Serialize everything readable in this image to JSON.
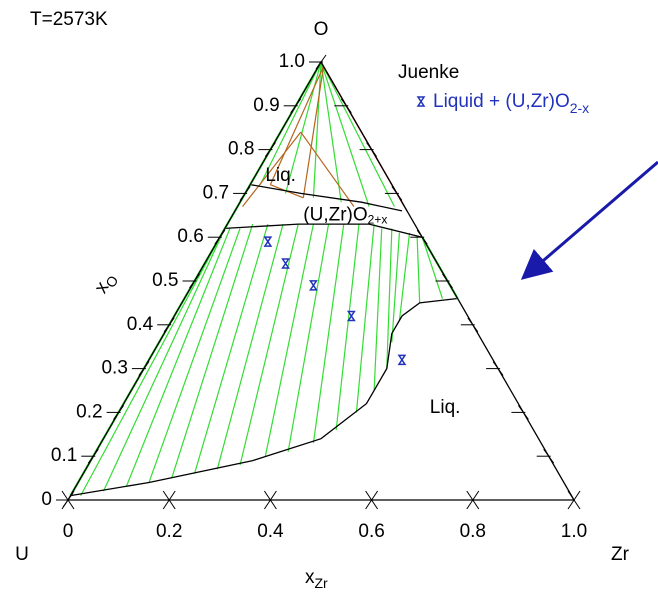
{
  "chart_data": {
    "type": "ternary",
    "title": "T=2573K",
    "corners": {
      "top": "O",
      "left": "U",
      "right": "Zr"
    },
    "x_label": "x",
    "x_label_sub": "Zr",
    "y_label": "x",
    "y_label_sub": "O",
    "yticks": [
      0,
      0.1,
      0.2,
      0.3,
      0.4,
      0.5,
      0.6,
      0.7,
      0.8,
      0.9,
      {
        "value": 1,
        "label": "1.0"
      }
    ],
    "xticks": [
      0,
      0.2,
      0.4,
      0.6,
      0.8,
      {
        "value": 1,
        "label": "1.0"
      }
    ],
    "legend_title": "Juenke",
    "series": [
      {
        "name": "Liquid + (U,Zr)O",
        "name_sub": "2-x",
        "color": "#2233bb",
        "xZr": [
          0.1,
          0.16,
          0.24,
          0.35,
          0.5
        ],
        "xO": [
          0.59,
          0.54,
          0.49,
          0.42,
          0.32
        ]
      }
    ],
    "annotations": [
      {
        "text": "Liq.",
        "at": [
          0.02,
          0.74
        ]
      },
      {
        "text": "(U,Zr)O",
        "sub": "2+x",
        "at": [
          0.14,
          0.65
        ]
      },
      {
        "text": "Liq.",
        "at": [
          0.61,
          0.21
        ]
      }
    ],
    "boundaries": [
      {
        "color": "#000000",
        "points": [
          [
            0.0,
            0.01
          ],
          [
            0.14,
            0.04
          ],
          [
            0.32,
            0.09
          ],
          [
            0.43,
            0.14
          ],
          [
            0.48,
            0.22
          ],
          [
            0.48,
            0.3
          ],
          [
            0.45,
            0.38
          ],
          [
            0.45,
            0.42
          ],
          [
            0.47,
            0.45
          ],
          [
            0.54,
            0.46
          ]
        ]
      },
      {
        "color": "#000000",
        "points": [
          [
            0.0,
            0.62
          ],
          [
            0.14,
            0.63
          ],
          [
            0.28,
            0.63
          ],
          [
            0.4,
            0.6
          ]
        ]
      },
      {
        "color": "#000000",
        "points": [
          [
            0.0,
            0.72
          ],
          [
            0.11,
            0.7
          ],
          [
            0.24,
            0.68
          ],
          [
            0.33,
            0.66
          ]
        ]
      },
      {
        "color": "#33dd33",
        "points": [
          [
            0.0,
            0.01
          ],
          [
            0.0,
            0.62
          ]
        ]
      },
      {
        "color": "#33dd33",
        "points": [
          [
            0.4,
            0.6
          ],
          [
            0.54,
            0.46
          ]
        ]
      },
      {
        "color": "#33dd33",
        "points": [
          [
            0.0,
            0.62
          ],
          [
            0.0,
            1
          ]
        ]
      },
      {
        "color": "#cc2222",
        "points": [
          [
            0.0,
            1
          ],
          [
            0.33,
            0.67
          ]
        ]
      },
      {
        "color": "#cc2222",
        "points": [
          [
            0.02,
            0.98
          ],
          [
            0.34,
            0.66
          ]
        ]
      }
    ],
    "tie_lines": [
      {
        "color": "#33dd33",
        "segments": [
          [
            [
              0.0,
              0.62
            ],
            [
              0.02,
              0.01
            ]
          ],
          [
            [
              0.0,
              0.62
            ],
            [
              0.06,
              0.02
            ]
          ],
          [
            [
              0.01,
              0.62
            ],
            [
              0.1,
              0.03
            ]
          ],
          [
            [
              0.03,
              0.62
            ],
            [
              0.14,
              0.04
            ]
          ],
          [
            [
              0.05,
              0.63
            ],
            [
              0.18,
              0.05
            ]
          ],
          [
            [
              0.08,
              0.63
            ],
            [
              0.22,
              0.06
            ]
          ],
          [
            [
              0.11,
              0.63
            ],
            [
              0.26,
              0.07
            ]
          ],
          [
            [
              0.14,
              0.63
            ],
            [
              0.3,
              0.08
            ]
          ],
          [
            [
              0.17,
              0.63
            ],
            [
              0.34,
              0.1
            ]
          ],
          [
            [
              0.2,
              0.63
            ],
            [
              0.38,
              0.11
            ]
          ],
          [
            [
              0.23,
              0.63
            ],
            [
              0.42,
              0.13
            ]
          ],
          [
            [
              0.26,
              0.63
            ],
            [
              0.45,
              0.16
            ]
          ],
          [
            [
              0.29,
              0.63
            ],
            [
              0.47,
              0.2
            ]
          ],
          [
            [
              0.31,
              0.62
            ],
            [
              0.48,
              0.25
            ]
          ],
          [
            [
              0.33,
              0.62
            ],
            [
              0.48,
              0.3
            ]
          ],
          [
            [
              0.35,
              0.61
            ],
            [
              0.46,
              0.36
            ]
          ],
          [
            [
              0.37,
              0.61
            ],
            [
              0.45,
              0.41
            ]
          ],
          [
            [
              0.39,
              0.6
            ],
            [
              0.47,
              0.45
            ]
          ],
          [
            [
              0.4,
              0.6
            ],
            [
              0.51,
              0.46
            ]
          ],
          [
            [
              0.0,
              1
            ],
            [
              0.02,
              0.72
            ]
          ],
          [
            [
              0.0,
              1
            ],
            [
              0.08,
              0.7
            ]
          ],
          [
            [
              0.0,
              1
            ],
            [
              0.14,
              0.69
            ]
          ],
          [
            [
              0.0,
              1
            ],
            [
              0.2,
              0.68
            ]
          ],
          [
            [
              0.0,
              1
            ],
            [
              0.26,
              0.67
            ]
          ],
          [
            [
              0.0,
              1
            ],
            [
              0.31,
              0.67
            ]
          ]
        ]
      },
      {
        "color": "#b5651d",
        "segments": [
          [
            [
              0.01,
              0.99
            ],
            [
              0.04,
              0.72
            ]
          ],
          [
            [
              0.01,
              0.99
            ],
            [
              0.12,
              0.69
            ]
          ],
          [
            [
              0.04,
              0.84
            ],
            [
              0.01,
              0.67
            ]
          ],
          [
            [
              0.04,
              0.84
            ],
            [
              0.23,
              0.67
            ]
          ],
          [
            [
              0.04,
              0.72
            ],
            [
              0.12,
              0.69
            ]
          ]
        ]
      }
    ]
  }
}
